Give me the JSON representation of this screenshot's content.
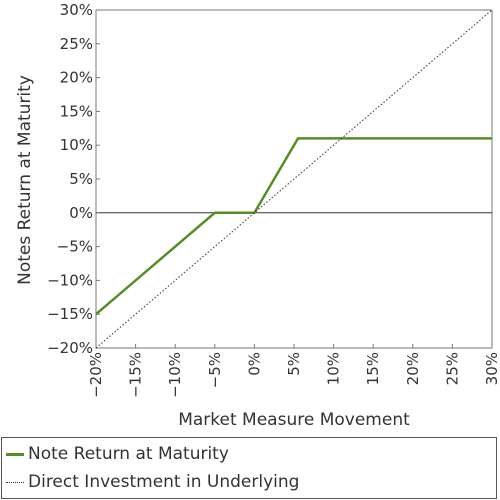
{
  "chart_data": {
    "type": "line",
    "title": "",
    "xlabel": "Market Measure Movement",
    "ylabel": "Notes Return at Maturity",
    "xlim": [
      -20,
      30
    ],
    "ylim": [
      -20,
      30
    ],
    "x_ticks": [
      -20,
      -15,
      -10,
      -5,
      0,
      5,
      10,
      15,
      20,
      25,
      30
    ],
    "y_ticks": [
      -20,
      -15,
      -10,
      -5,
      0,
      5,
      10,
      15,
      20,
      25,
      30
    ],
    "x_tick_labels": [
      "−20%",
      "−15%",
      "−10%",
      "−5%",
      "0%",
      "5%",
      "10%",
      "15%",
      "20%",
      "25%",
      "30%"
    ],
    "y_tick_labels": [
      "−20%",
      "−15%",
      "−10%",
      "−5%",
      "0%",
      "5%",
      "10%",
      "15%",
      "20%",
      "25%",
      "30%"
    ],
    "grid": false,
    "legend_position": "bottom",
    "series": [
      {
        "name": "Note Return at Maturity",
        "color": "#5a8a2a",
        "style": "solid",
        "x": [
          -20,
          -5,
          0,
          5.5,
          30
        ],
        "y": [
          -15,
          0,
          0,
          11,
          11
        ]
      },
      {
        "name": "Direct Investment in Underlying",
        "color": "#333333",
        "style": "dotted",
        "x": [
          -20,
          30
        ],
        "y": [
          -20,
          30
        ]
      }
    ]
  }
}
